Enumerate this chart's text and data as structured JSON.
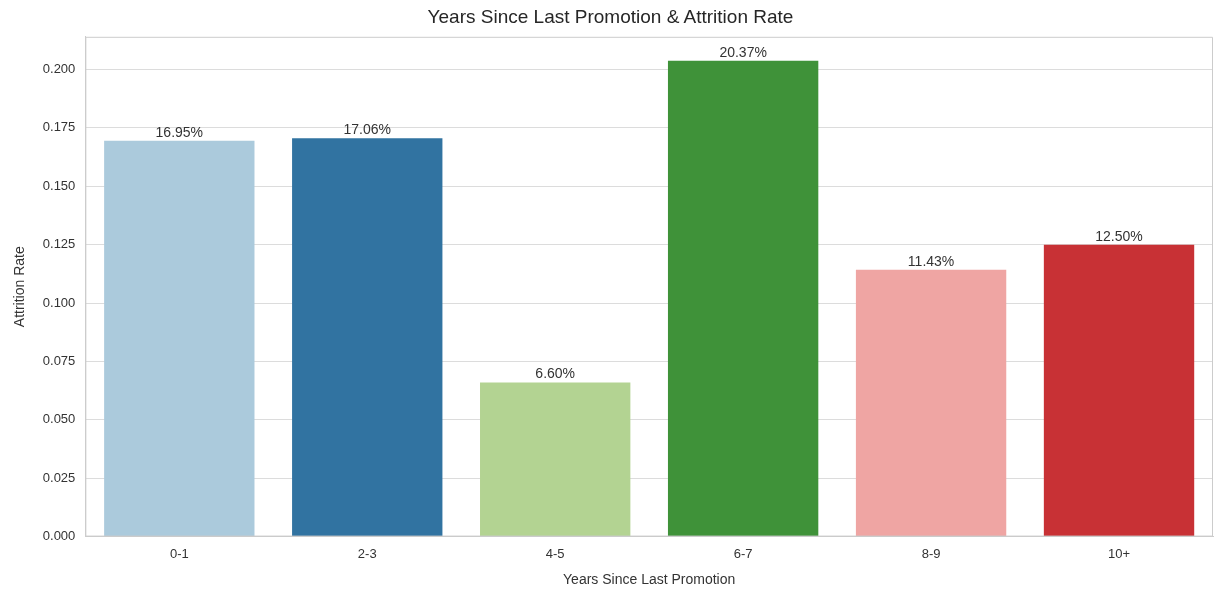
{
  "chart_data": {
    "type": "bar",
    "title": "Years Since Last Promotion & Attrition Rate",
    "xlabel": "Years Since Last Promotion",
    "ylabel": "Attrition Rate",
    "categories": [
      "0-1",
      "2-3",
      "4-5",
      "6-7",
      "8-9",
      "10+"
    ],
    "values": [
      0.1695,
      0.1706,
      0.066,
      0.2037,
      0.1143,
      0.125
    ],
    "value_labels": [
      "16.95%",
      "17.06%",
      "6.60%",
      "20.37%",
      "11.43%",
      "12.50%"
    ],
    "colors": [
      "#abcadc",
      "#3173a1",
      "#b3d392",
      "#3f9239",
      "#efa5a3",
      "#c83135"
    ],
    "ylim": [
      0,
      0.214
    ],
    "yticks": [
      {
        "value": 0,
        "label": "0.000"
      },
      {
        "value": 0.025,
        "label": "0.025"
      },
      {
        "value": 0.05,
        "label": "0.050"
      },
      {
        "value": 0.075,
        "label": "0.075"
      },
      {
        "value": 0.1,
        "label": "0.100"
      },
      {
        "value": 0.125,
        "label": "0.125"
      },
      {
        "value": 0.15,
        "label": "0.150"
      },
      {
        "value": 0.175,
        "label": "0.175"
      },
      {
        "value": 0.2,
        "label": "0.200"
      }
    ],
    "grid": "y"
  }
}
